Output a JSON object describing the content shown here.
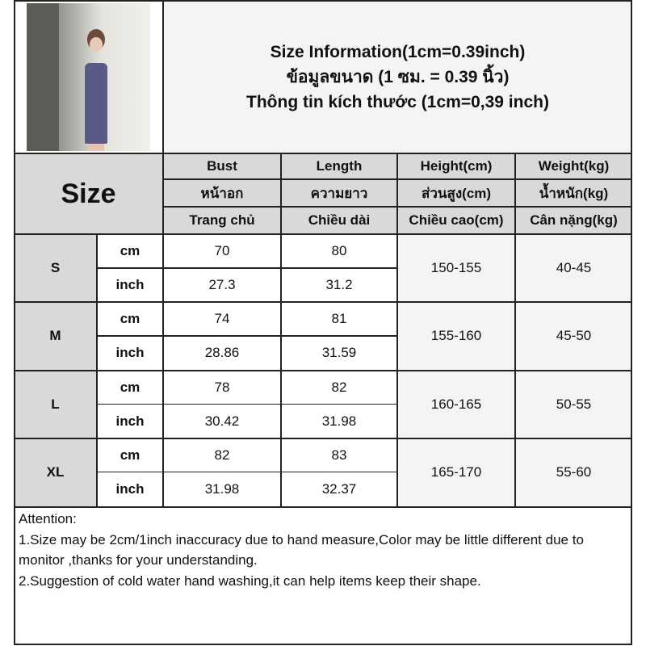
{
  "title_lines": [
    "Size Information(1cm=0.39inch)",
    "ข้อมูลขนาด (1 ซม. = 0.39 นิ้ว)",
    "Thông tin kích thước (1cm=0,39 inch)"
  ],
  "size_label": "Size",
  "columns": [
    [
      "Bust",
      "หน้าอก",
      "Trang chủ"
    ],
    [
      "Length",
      "ความยาว",
      "Chiều dài"
    ],
    [
      "Height(cm)",
      "ส่วนสูง(cm)",
      "Chiều cao(cm)"
    ],
    [
      "Weight(kg)",
      "น้ำหนัก(kg)",
      "Cân nặng(kg)"
    ]
  ],
  "rows": [
    {
      "size": "S",
      "cm_label": "cm",
      "inch_label": "inch",
      "bust_cm": "70",
      "length_cm": "80",
      "bust_inch": "27.3",
      "length_inch": "31.2",
      "height": "150-155",
      "weight": "40-45"
    },
    {
      "size": "M",
      "cm_label": "cm",
      "inch_label": "inch",
      "bust_cm": "74",
      "length_cm": "81",
      "bust_inch": "28.86",
      "length_inch": "31.59",
      "height": "155-160",
      "weight": "45-50"
    },
    {
      "size": "L",
      "cm_label": "cm",
      "inch_label": "inch",
      "bust_cm": "78",
      "length_cm": "82",
      "bust_inch": "30.42",
      "length_inch": "31.98",
      "height": "160-165",
      "weight": "50-55"
    },
    {
      "size": "XL",
      "cm_label": "cm",
      "inch_label": "inch",
      "bust_cm": "82",
      "length_cm": "83",
      "bust_inch": "31.98",
      "length_inch": "32.37",
      "height": "165-170",
      "weight": "55-60"
    }
  ],
  "notes": [
    "Attention:",
    "1.Size may be 2cm/1inch inaccuracy due to hand measure,Color may be little different due to monitor ,thanks for your understanding.",
    "2.Suggestion of cold water hand washing,it can help items keep their shape."
  ]
}
